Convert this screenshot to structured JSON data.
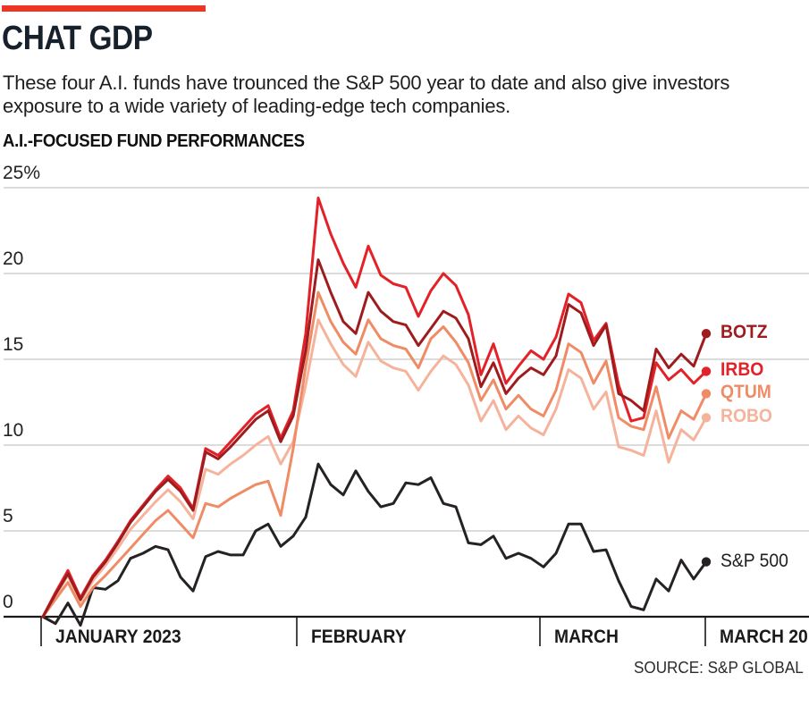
{
  "header": {
    "kicker_bar_color": "#ee3524",
    "title": "CHAT GDP",
    "subtitle": "These four A.I. funds have trounced the S&P 500 year to date and also give investors exposure to a wide variety of leading-edge tech companies.",
    "section_label": "A.I.-FOCUSED FUND PERFORMANCES"
  },
  "source": "SOURCE: S&P GLOBAL",
  "chart_data": {
    "type": "line",
    "title": "A.I.-FOCUSED FUND PERFORMANCES",
    "x_axis": {
      "tick_labels": [
        "JANUARY 2023",
        "FEBRUARY",
        "MARCH",
        "MARCH 20"
      ],
      "range_note": "daily values, Jan 3 - Mar 20, 2023"
    },
    "y_axis": {
      "tick_labels": [
        "25%",
        "20",
        "15",
        "10",
        "5",
        "0"
      ],
      "tick_values": [
        25,
        20,
        15,
        10,
        5,
        0
      ],
      "unit": "percent change year to date",
      "ylim": [
        -1,
        25
      ],
      "gridlines": [
        25,
        20,
        15,
        10,
        5
      ],
      "baseline": 0
    },
    "grid": true,
    "legend_position": "end-of-line-labels-right",
    "series": [
      {
        "name": "BOTZ",
        "color": "#9e1b1e",
        "values": [
          0,
          1.3,
          2.5,
          1.0,
          2.3,
          3.2,
          4.3,
          5.5,
          6.4,
          7.3,
          8.0,
          7.3,
          6.2,
          9.6,
          9.2,
          9.9,
          10.7,
          11.5,
          12.0,
          10.2,
          11.7,
          15.5,
          20.8,
          18.9,
          17.2,
          16.5,
          18.9,
          17.8,
          17.2,
          17.0,
          15.8,
          16.8,
          17.8,
          17.4,
          16.2,
          13.4,
          14.8,
          13.0,
          13.9,
          14.5,
          14.1,
          15.2,
          18.2,
          17.7,
          15.8,
          17.0,
          13.0,
          12.6,
          12.0,
          15.6,
          14.5,
          15.3,
          14.6,
          16.5
        ]
      },
      {
        "name": "IRBO",
        "color": "#e32128",
        "values": [
          0,
          1.4,
          2.7,
          1.1,
          2.4,
          3.3,
          4.4,
          5.6,
          6.5,
          7.4,
          8.2,
          7.5,
          6.3,
          9.8,
          9.4,
          10.2,
          11.0,
          11.8,
          12.3,
          10.4,
          12.0,
          16.5,
          24.4,
          22.3,
          20.6,
          19.2,
          21.6,
          19.9,
          19.4,
          19.2,
          17.5,
          19.0,
          20.0,
          19.3,
          17.6,
          14.1,
          15.9,
          13.6,
          14.6,
          15.5,
          15.0,
          16.3,
          18.8,
          18.3,
          16.1,
          17.1,
          13.5,
          11.4,
          11.6,
          14.8,
          13.8,
          14.4,
          13.6,
          14.3
        ]
      },
      {
        "name": "QTUM",
        "color": "#ef8c66",
        "values": [
          0,
          1.0,
          2.0,
          0.6,
          1.7,
          2.4,
          3.2,
          4.0,
          4.8,
          5.6,
          6.2,
          5.4,
          4.6,
          6.6,
          6.4,
          6.9,
          7.3,
          7.7,
          7.9,
          5.9,
          9.8,
          14.6,
          18.9,
          17.2,
          16.0,
          15.3,
          17.3,
          16.2,
          15.8,
          15.6,
          14.5,
          16.2,
          16.9,
          16.0,
          14.8,
          12.6,
          13.8,
          12.1,
          12.9,
          12.1,
          11.7,
          13.2,
          15.9,
          15.4,
          13.6,
          14.9,
          11.6,
          11.1,
          10.9,
          13.4,
          10.4,
          12.0,
          11.5,
          13.0
        ]
      },
      {
        "name": "ROBO",
        "color": "#f6b39c",
        "values": [
          0,
          1.2,
          2.4,
          0.9,
          2.1,
          3.0,
          4.0,
          5.1,
          5.9,
          6.7,
          7.4,
          6.7,
          5.7,
          8.6,
          8.3,
          8.9,
          9.4,
          10.0,
          10.5,
          8.9,
          10.2,
          13.5,
          17.3,
          15.9,
          14.7,
          14.0,
          16.0,
          14.9,
          14.5,
          14.3,
          13.2,
          14.3,
          15.2,
          14.7,
          13.5,
          11.4,
          12.6,
          10.9,
          11.7,
          11.0,
          10.6,
          12.1,
          14.4,
          13.9,
          12.1,
          13.1,
          9.9,
          9.7,
          9.4,
          12.0,
          9.0,
          10.9,
          10.3,
          11.6
        ]
      },
      {
        "name": "S&P 500",
        "color": "#262223",
        "values": [
          0,
          -0.4,
          0.8,
          -0.5,
          1.7,
          1.6,
          2.1,
          3.4,
          3.7,
          4.1,
          3.9,
          2.3,
          1.5,
          3.5,
          3.8,
          3.6,
          3.6,
          5.0,
          5.4,
          4.1,
          4.7,
          5.8,
          8.9,
          7.7,
          7.1,
          8.5,
          7.3,
          6.4,
          6.6,
          7.8,
          7.7,
          8.1,
          6.6,
          6.4,
          4.3,
          4.2,
          4.7,
          3.4,
          3.7,
          3.4,
          2.9,
          3.7,
          5.4,
          5.4,
          3.8,
          3.9,
          2.1,
          0.6,
          0.4,
          2.2,
          1.5,
          3.3,
          2.2,
          3.2
        ]
      }
    ]
  },
  "colors": {
    "gridline": "#c7c7c7",
    "axis": "#191919",
    "accent_red": "#ee3524"
  }
}
